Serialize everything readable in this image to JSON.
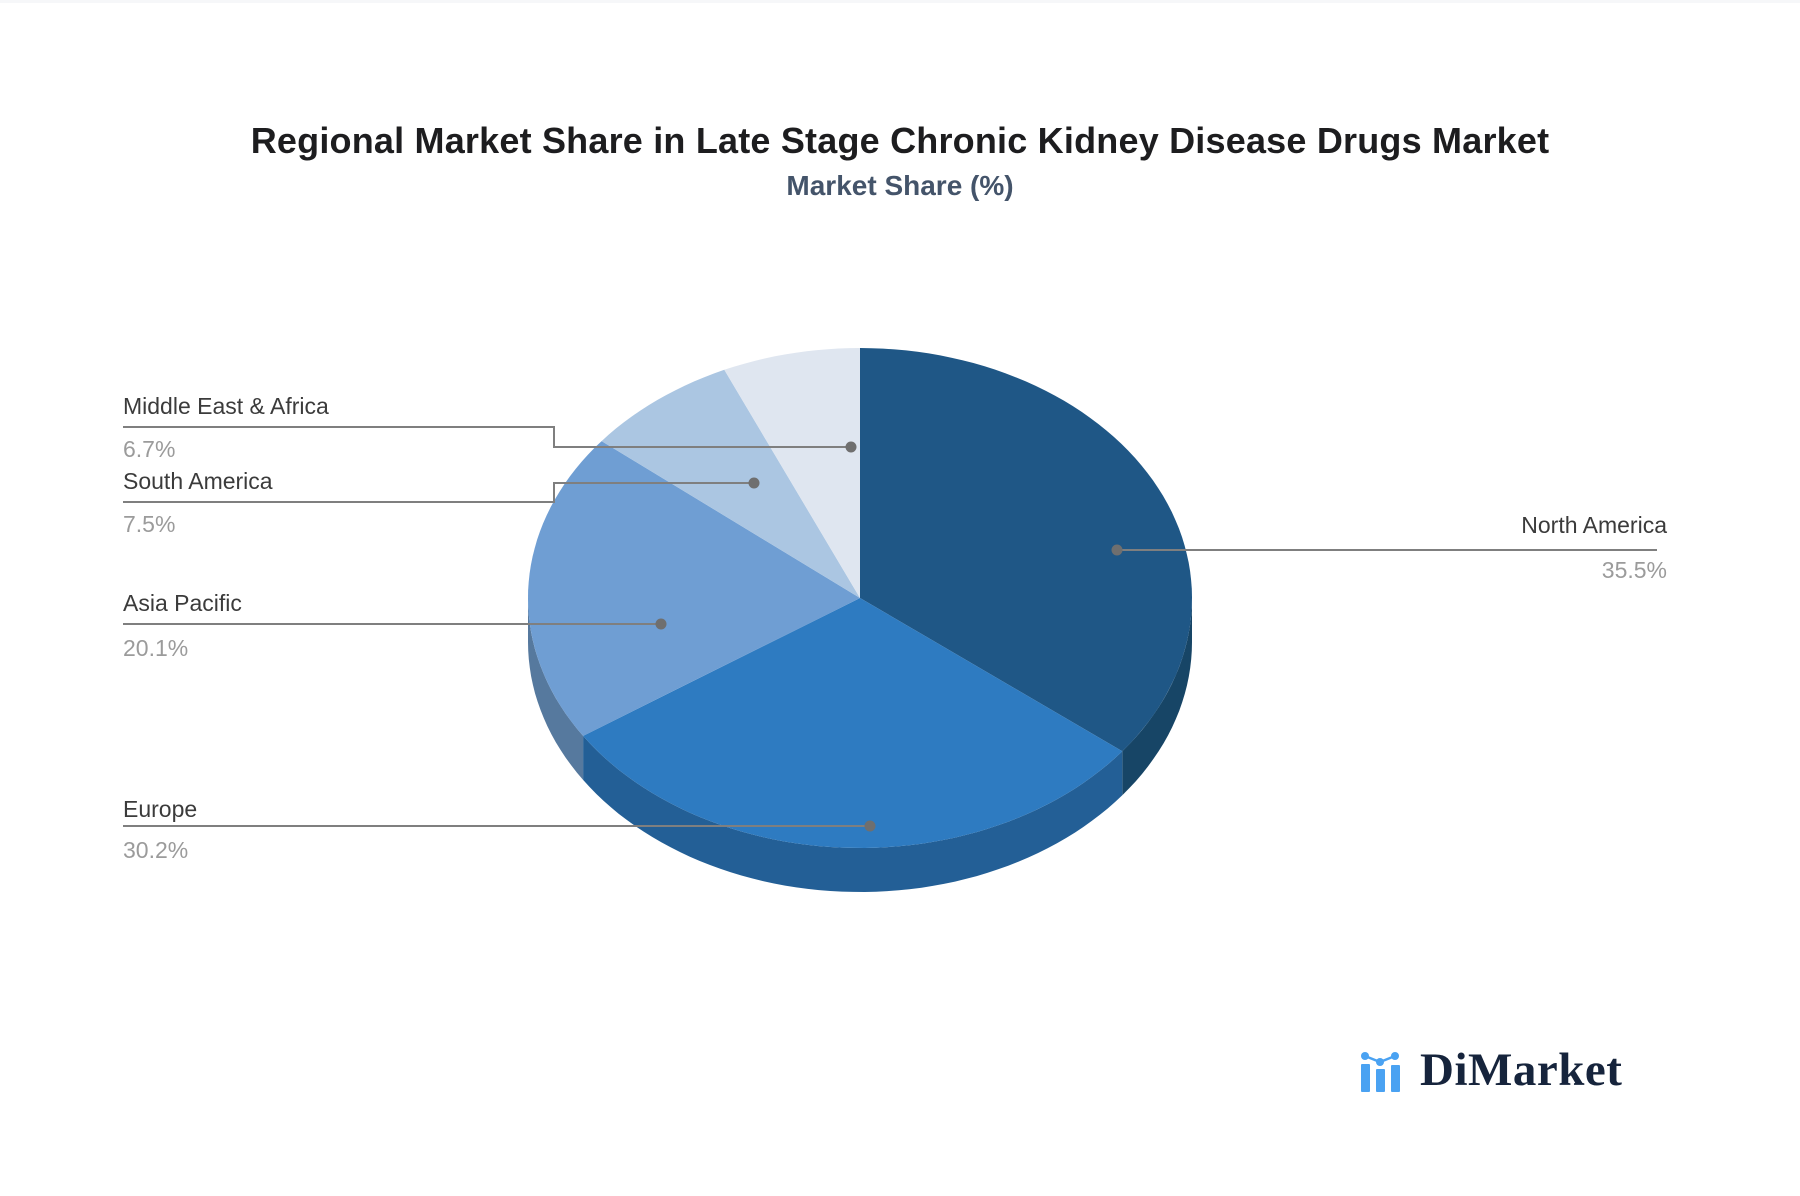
{
  "page": {
    "background": "#ffffff"
  },
  "chart_data": {
    "type": "pie",
    "style_3d": true,
    "title": "Regional Market Share in Late Stage Chronic Kidney Disease Drugs Market",
    "subtitle": "Market Share (%)",
    "unit": "%",
    "direction": "clockwise",
    "start_angle": "12-oclock",
    "legend": "callout-labels",
    "series": [
      {
        "name": "North America",
        "value": 35.5,
        "pct_label": "35.5%",
        "color": "#1f5786",
        "side_color": "#174566"
      },
      {
        "name": "Europe",
        "value": 30.2,
        "pct_label": "30.2%",
        "color": "#2e7bc1",
        "side_color": "#235f96"
      },
      {
        "name": "Asia Pacific",
        "value": 20.1,
        "pct_label": "20.1%",
        "color": "#6f9ed3",
        "side_color": "#56799e"
      },
      {
        "name": "South America",
        "value": 7.5,
        "pct_label": "7.5%",
        "color": "#abc6e2",
        "side_color": "#8aa6c2"
      },
      {
        "name": "Middle East & Africa",
        "value": 6.7,
        "pct_label": "6.7%",
        "color": "#dfe6f0",
        "side_color": "#b9c4d4"
      }
    ]
  },
  "style": {
    "title_color": "#1d1d1f",
    "subtitle_color": "#44546a",
    "label_color": "#3b3b3b",
    "pct_color": "#9b9b9b",
    "leader_line_color": "#7f7f7f",
    "leader_dot_color": "#6f6f6f",
    "logo_text_color": "#16243c",
    "logo_icon_color": "#4aa2f2"
  },
  "logo": {
    "text": "DiMarket"
  }
}
